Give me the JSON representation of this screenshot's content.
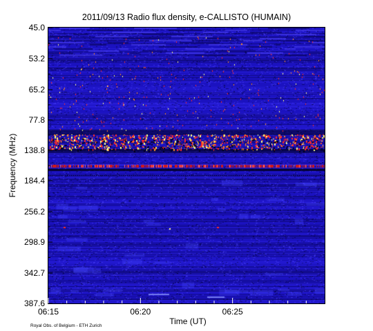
{
  "chart_data": {
    "type": "heatmap",
    "title": "2011/09/13  Radio flux density, e-CALLISTO (HUMAIN)",
    "xlabel": "Time (UT)",
    "ylabel": "Frequency (MHz)",
    "x_range": [
      "06:15",
      "06:30"
    ],
    "y_range_mhz": [
      45.0,
      387.6
    ],
    "y_ticks": [
      "45.0",
      "53.2",
      "65.2",
      "77.8",
      "138.8",
      "184.4",
      "256.2",
      "298.9",
      "342.7",
      "387.6"
    ],
    "x_ticks": [
      "06:15",
      "06:20",
      "06:25"
    ],
    "colors": {
      "background": "#1b12c0",
      "low": "#000033",
      "mid": "#3a2cff",
      "high": "#ff2a2a",
      "peak": "#ffff80"
    },
    "features": [
      {
        "band_mhz": [
          120.0,
          150.0
        ],
        "note": "dense interference bursts"
      },
      {
        "band_mhz": [
          160.0,
          175.0
        ],
        "note": "red interference band"
      }
    ]
  },
  "credit": "Royal Obs. of Belgium - ETH Zurich"
}
